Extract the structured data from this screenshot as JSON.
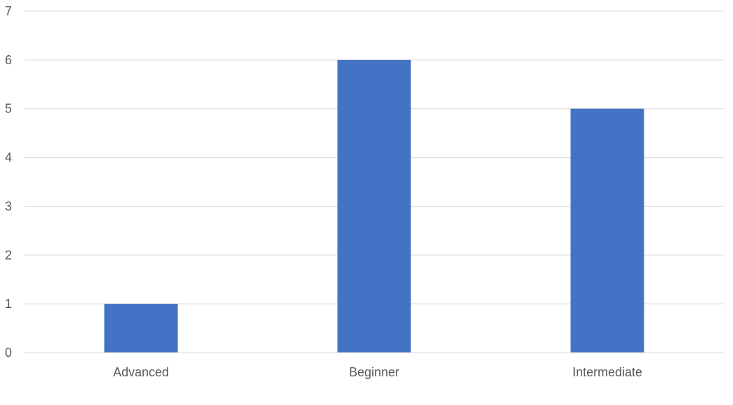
{
  "chart_data": {
    "type": "bar",
    "categories": [
      "Advanced",
      "Beginner",
      "Intermediate"
    ],
    "values": [
      1,
      6,
      5
    ],
    "ylim": [
      0,
      7
    ],
    "yticks": [
      0,
      1,
      2,
      3,
      4,
      5,
      6,
      7
    ],
    "grid": true,
    "legend": "none",
    "title": "",
    "xlabel": "",
    "ylabel": "",
    "bar_color": "#4472C4",
    "gridline_color": "#D9D9D9",
    "label_color": "#595959"
  }
}
